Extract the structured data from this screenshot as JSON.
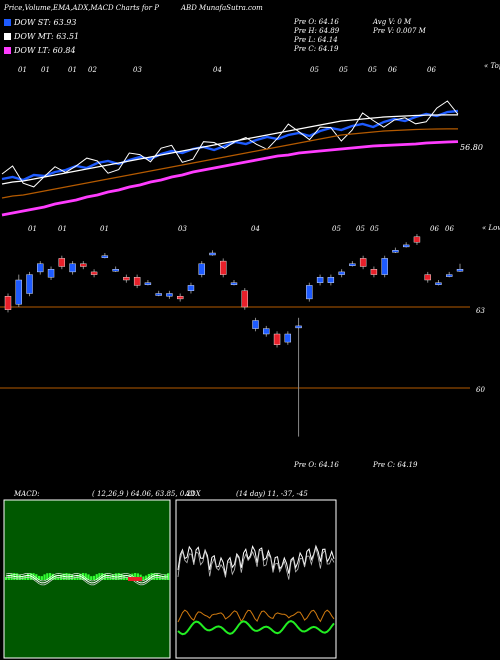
{
  "header": {
    "title": "Price,Volume,EMA,ADX,MACD Charts for P",
    "site": "ABD MunafaSutra.com"
  },
  "legend": [
    {
      "label": "DOW ST: 63.93",
      "color": "#1e5bff"
    },
    {
      "label": "DOW MT: 63.51",
      "color": "#ffffff"
    },
    {
      "label": "DOW LT: 60.84",
      "color": "#ff3cff"
    }
  ],
  "ohlc": {
    "open": "Pre  O: 64.16",
    "high": "Pre  H: 64.89",
    "low": "Pre  L: 64.14",
    "close": "Pre  C: 64.19",
    "avg_volume": "Avg V: 0  M",
    "volume": "Pre  V: 0.007 M",
    "bottom_open": "Pre  O: 64.16",
    "bottom_close": "Pre  C: 64.19"
  },
  "price_panel": {
    "right_label": "« Topo",
    "price_tag": "56.80",
    "month_ticks": [
      "01",
      "01",
      "01",
      "02",
      "03",
      "04",
      "05",
      "05",
      "05",
      "06",
      "06"
    ]
  },
  "lower_panel": {
    "right_label": "« Lower",
    "level_63": "63",
    "level_60": "60",
    "month_ticks": [
      "01",
      "01",
      "01",
      "03",
      "04",
      "05",
      "05",
      "05",
      "06",
      "06"
    ]
  },
  "macd": {
    "label": "MACD:",
    "values": "( 12,26,9 ) 64.06,  63.85,  0.21"
  },
  "adx": {
    "label": "ADX",
    "values": "(14  day) 11,  -37,  -45"
  },
  "colors": {
    "up": "#1e5bff",
    "down": "#e8202a",
    "ema_st": "#1e5bff",
    "ema_lt": "#ff3cff",
    "macd_bg": "#005800",
    "hist": "#33ff33"
  },
  "chart_data": [
    {
      "type": "line",
      "title": "Price,Volume,EMA,ADX,MACD Charts for P",
      "series": [
        {
          "name": "DOW ST",
          "values": [
            57.1,
            57.3,
            57.0,
            57.5,
            57.4,
            57.8,
            58.0,
            58.4,
            58.2,
            58.7,
            58.9,
            58.6,
            59.0,
            59.3,
            59.1,
            59.6,
            59.9,
            59.7,
            60.1,
            60.3,
            60.0,
            60.4,
            60.8,
            60.6,
            61.0,
            61.3,
            61.1,
            61.5,
            61.7,
            61.4,
            61.9,
            62.2,
            62.0,
            62.4,
            62.6,
            62.3,
            62.8,
            63.1,
            62.9,
            63.3,
            63.6,
            63.4,
            63.8,
            63.9
          ]
        },
        {
          "name": "DOW MT",
          "values": [
            56.6,
            56.8,
            56.9,
            57.1,
            57.3,
            57.5,
            57.7,
            57.9,
            58.1,
            58.3,
            58.5,
            58.7,
            58.9,
            59.1,
            59.3,
            59.5,
            59.7,
            59.9,
            60.1,
            60.3,
            60.5,
            60.7,
            60.9,
            61.1,
            61.3,
            61.5,
            61.7,
            61.9,
            62.1,
            62.3,
            62.5,
            62.7,
            62.9,
            63.0,
            63.1,
            63.2,
            63.3,
            63.35,
            63.4,
            63.45,
            63.48,
            63.5,
            63.51,
            63.51
          ]
        },
        {
          "name": "DOW LT",
          "values": [
            53.5,
            53.7,
            53.9,
            54.1,
            54.3,
            54.6,
            54.8,
            55.0,
            55.3,
            55.5,
            55.8,
            56.0,
            56.3,
            56.5,
            56.8,
            57.0,
            57.3,
            57.5,
            57.8,
            58.0,
            58.2,
            58.4,
            58.6,
            58.8,
            59.0,
            59.2,
            59.4,
            59.5,
            59.7,
            59.8,
            59.9,
            60.0,
            60.1,
            60.2,
            60.3,
            60.4,
            60.45,
            60.5,
            60.55,
            60.6,
            60.7,
            60.75,
            60.8,
            60.84
          ]
        }
      ]
    },
    {
      "type": "bar",
      "title": "Candles",
      "ylabel": "",
      "ylim": [
        57.5,
        66.5
      ],
      "values": [
        {
          "o": 62.9,
          "c": 63.4,
          "h": 63.5,
          "l": 62.8,
          "up": false
        },
        {
          "o": 63.1,
          "c": 64.0,
          "h": 64.2,
          "l": 63.0,
          "up": true
        },
        {
          "o": 63.5,
          "c": 64.2,
          "h": 64.3,
          "l": 63.4,
          "up": true
        },
        {
          "o": 64.3,
          "c": 64.6,
          "h": 64.7,
          "l": 64.2,
          "up": true
        },
        {
          "o": 64.1,
          "c": 64.4,
          "h": 64.5,
          "l": 64.0,
          "up": true
        },
        {
          "o": 64.8,
          "c": 64.5,
          "h": 64.9,
          "l": 64.4,
          "up": false
        },
        {
          "o": 64.3,
          "c": 64.6,
          "h": 64.7,
          "l": 64.2,
          "up": true
        },
        {
          "o": 64.6,
          "c": 64.5,
          "h": 64.7,
          "l": 64.4,
          "up": false
        },
        {
          "o": 64.3,
          "c": 64.2,
          "h": 64.4,
          "l": 64.1,
          "up": false
        },
        {
          "o": 64.9,
          "c": 64.9,
          "h": 65.0,
          "l": 64.8,
          "up": true
        },
        {
          "o": 64.4,
          "c": 64.4,
          "h": 64.5,
          "l": 64.3,
          "up": true
        },
        {
          "o": 64.1,
          "c": 64.0,
          "h": 64.2,
          "l": 63.9,
          "up": false
        },
        {
          "o": 64.1,
          "c": 63.8,
          "h": 64.2,
          "l": 63.7,
          "up": false
        },
        {
          "o": 63.9,
          "c": 63.9,
          "h": 64.0,
          "l": 63.8,
          "up": true
        },
        {
          "o": 63.5,
          "c": 63.5,
          "h": 63.6,
          "l": 63.4,
          "up": true
        },
        {
          "o": 63.4,
          "c": 63.5,
          "h": 63.6,
          "l": 63.3,
          "up": true
        },
        {
          "o": 63.4,
          "c": 63.3,
          "h": 63.5,
          "l": 63.2,
          "up": false
        },
        {
          "o": 63.6,
          "c": 63.8,
          "h": 63.9,
          "l": 63.5,
          "up": true
        },
        {
          "o": 64.2,
          "c": 64.6,
          "h": 64.7,
          "l": 64.1,
          "up": true
        },
        {
          "o": 65.0,
          "c": 65.0,
          "h": 65.1,
          "l": 64.9,
          "up": true
        },
        {
          "o": 64.7,
          "c": 64.2,
          "h": 64.8,
          "l": 64.1,
          "up": false
        },
        {
          "o": 63.9,
          "c": 63.9,
          "h": 64.0,
          "l": 63.8,
          "up": true
        },
        {
          "o": 63.6,
          "c": 63.0,
          "h": 63.7,
          "l": 62.9,
          "up": false
        },
        {
          "o": 62.5,
          "c": 62.2,
          "h": 62.6,
          "l": 62.1,
          "up": true
        },
        {
          "o": 62.2,
          "c": 62.0,
          "h": 62.3,
          "l": 61.9,
          "up": true
        },
        {
          "o": 62.0,
          "c": 61.6,
          "h": 62.1,
          "l": 61.5,
          "up": false
        },
        {
          "o": 62.0,
          "c": 61.7,
          "h": 62.1,
          "l": 61.6,
          "up": true
        },
        {
          "o": 62.3,
          "c": 62.3,
          "h": 62.6,
          "l": 58.2,
          "up": true
        },
        {
          "o": 63.3,
          "c": 63.8,
          "h": 63.9,
          "l": 63.2,
          "up": true
        },
        {
          "o": 63.9,
          "c": 64.1,
          "h": 64.2,
          "l": 63.8,
          "up": true
        },
        {
          "o": 63.9,
          "c": 64.1,
          "h": 64.2,
          "l": 63.8,
          "up": true
        },
        {
          "o": 64.2,
          "c": 64.3,
          "h": 64.4,
          "l": 64.1,
          "up": true
        },
        {
          "o": 64.6,
          "c": 64.6,
          "h": 64.7,
          "l": 64.5,
          "up": true
        },
        {
          "o": 64.8,
          "c": 64.5,
          "h": 64.9,
          "l": 64.4,
          "up": false
        },
        {
          "o": 64.4,
          "c": 64.2,
          "h": 64.5,
          "l": 64.1,
          "up": false
        },
        {
          "o": 64.2,
          "c": 64.8,
          "h": 64.9,
          "l": 64.1,
          "up": true
        },
        {
          "o": 65.1,
          "c": 65.1,
          "h": 65.2,
          "l": 65.0,
          "up": true
        },
        {
          "o": 65.3,
          "c": 65.3,
          "h": 65.4,
          "l": 65.2,
          "up": true
        },
        {
          "o": 65.6,
          "c": 65.4,
          "h": 65.7,
          "l": 65.3,
          "up": false
        },
        {
          "o": 64.2,
          "c": 64.0,
          "h": 64.3,
          "l": 63.9,
          "up": false
        },
        {
          "o": 63.9,
          "c": 63.9,
          "h": 64.0,
          "l": 63.8,
          "up": true
        },
        {
          "o": 64.2,
          "c": 64.2,
          "h": 64.3,
          "l": 64.1,
          "up": true
        },
        {
          "o": 64.4,
          "c": 64.4,
          "h": 64.6,
          "l": 64.3,
          "up": true
        }
      ]
    }
  ]
}
